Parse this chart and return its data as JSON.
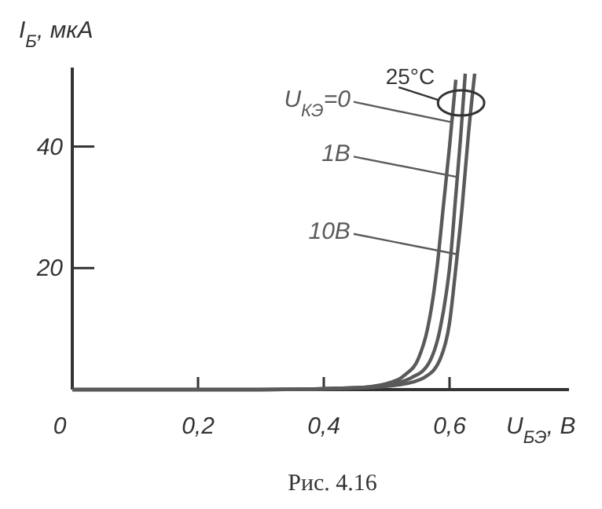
{
  "chart_data": {
    "type": "line",
    "xlabel": "U$_{БЭ}$, В",
    "ylabel": "I$_{Б}$, мкА",
    "xlim": [
      0,
      0.79
    ],
    "ylim": [
      0,
      53
    ],
    "xticks": [
      0,
      {
        "value": 0.2,
        "label": "0,2"
      },
      {
        "value": 0.4,
        "label": "0,4"
      },
      {
        "value": 0.6,
        "label": "0,6"
      }
    ],
    "yticks": [
      20,
      40
    ],
    "legend": "top",
    "grid": false,
    "marker": "none",
    "line_style": "solid",
    "annotations": [
      "25°C",
      "Рис. 4.16"
    ],
    "series": [
      {
        "name": "U$_{КЭ}$=0",
        "color": "#5a5a5a",
        "x": [
          0,
          0.3,
          0.45,
          0.5,
          0.53,
          0.55,
          0.565,
          0.575,
          0.58,
          0.59,
          0.6,
          0.61
        ],
        "values": [
          0,
          0,
          0.3,
          1,
          2.5,
          5,
          10,
          16,
          20,
          30,
          40,
          51
        ]
      },
      {
        "name": "1В",
        "color": "#5a5a5a",
        "x": [
          0,
          0.3,
          0.45,
          0.5,
          0.54,
          0.565,
          0.585,
          0.595,
          0.6,
          0.61,
          0.618,
          0.625
        ],
        "values": [
          0,
          0,
          0.3,
          0.8,
          2,
          4,
          10,
          16,
          20,
          32,
          42,
          52
        ]
      },
      {
        "name": "10В",
        "color": "#5a5a5a",
        "x": [
          0,
          0.3,
          0.46,
          0.52,
          0.56,
          0.585,
          0.6,
          0.61,
          0.62,
          0.63,
          0.64
        ],
        "values": [
          0,
          0,
          0.3,
          0.8,
          2,
          5,
          11,
          20,
          30,
          42,
          52
        ]
      }
    ]
  }
}
